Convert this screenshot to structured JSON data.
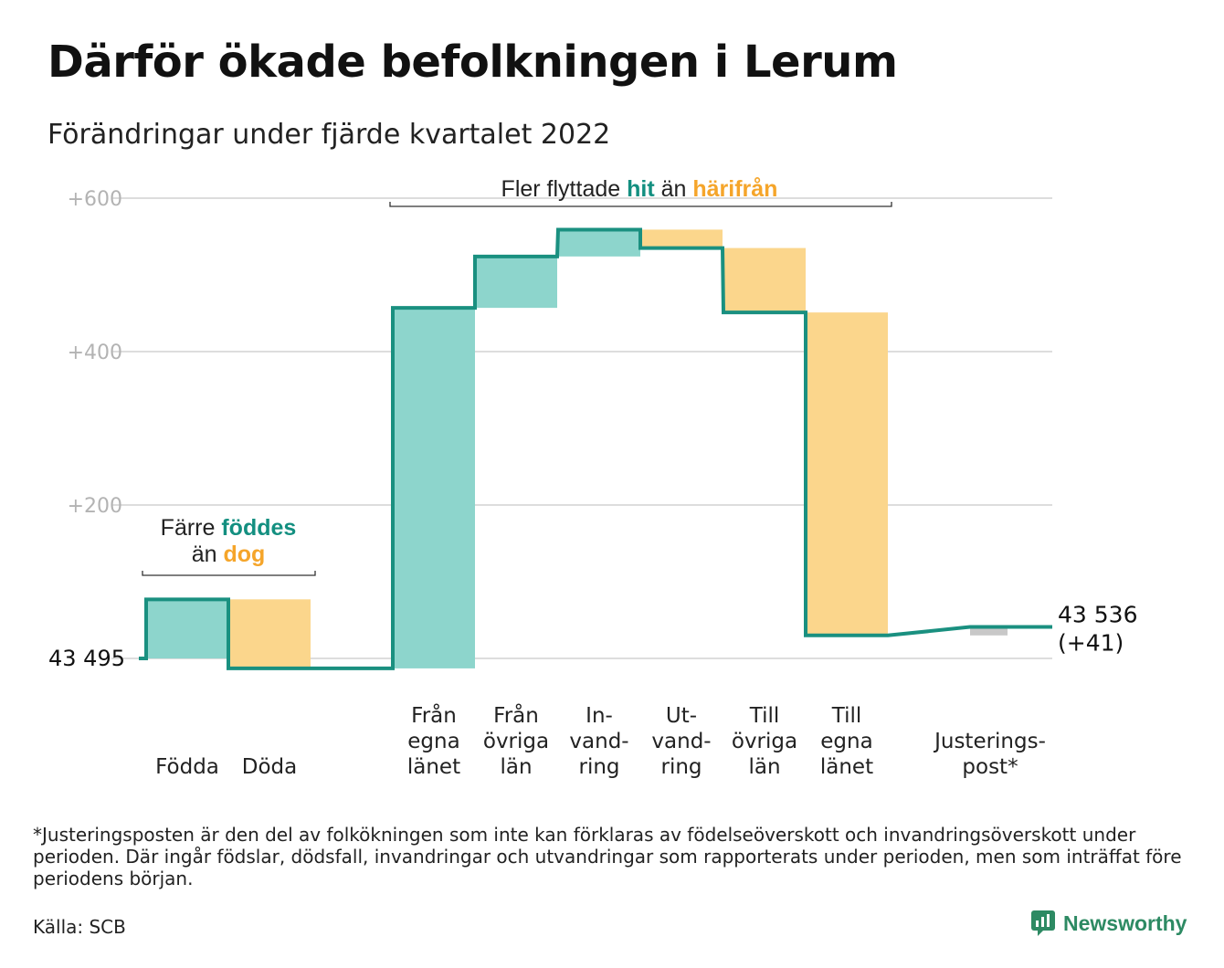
{
  "title": "Därför ökade befolkningen i Lerum",
  "subtitle": "Förändringar under fjärde kvartalet 2022",
  "colors": {
    "increase": "#8dd5cc",
    "decrease": "#fbd68c",
    "adjustment": "#c8c8c8",
    "line": "#1a9080",
    "accent_teal": "#138f80",
    "accent_orange": "#f5a52a",
    "grid": "#dddddd",
    "tick": "#b3b3b3",
    "brand": "#2d8a63"
  },
  "chart_data": {
    "type": "waterfall",
    "start_label": "43 495",
    "start_value": 43495,
    "end_label": "43 536",
    "end_change_label": "(+41)",
    "y_ticks": [
      {
        "value": 200,
        "label": "+200"
      },
      {
        "value": 400,
        "label": "+400"
      },
      {
        "value": 600,
        "label": "+600"
      }
    ],
    "ylim": [
      -20,
      620
    ],
    "categories": [
      {
        "label_lines": [
          "Födda"
        ],
        "change": 77,
        "kind": "increase"
      },
      {
        "label_lines": [
          "Döda"
        ],
        "change": -90,
        "kind": "decrease"
      },
      {
        "label_lines": [
          "Från",
          "egna",
          "länet"
        ],
        "change": 470,
        "kind": "increase"
      },
      {
        "label_lines": [
          "Från",
          "övriga",
          "län"
        ],
        "change": 67,
        "kind": "increase"
      },
      {
        "label_lines": [
          "In-",
          "vand-",
          "ring"
        ],
        "change": 35,
        "kind": "increase"
      },
      {
        "label_lines": [
          "Ut-",
          "vand-",
          "ring"
        ],
        "change": -24,
        "kind": "decrease"
      },
      {
        "label_lines": [
          "Till",
          "övriga",
          "län"
        ],
        "change": -84,
        "kind": "decrease"
      },
      {
        "label_lines": [
          "Till",
          "egna",
          "länet"
        ],
        "change": -421,
        "kind": "decrease"
      },
      {
        "label_lines": [
          "Justerings-",
          "post*"
        ],
        "change": 11,
        "kind": "adjustment"
      }
    ],
    "annotations": {
      "births_deaths": {
        "line1_parts": [
          {
            "text": "Färre ",
            "color": "plain"
          },
          {
            "text": "föddes",
            "color": "teal"
          }
        ],
        "line2_parts": [
          {
            "text": "än ",
            "color": "plain"
          },
          {
            "text": "dog",
            "color": "orange"
          }
        ]
      },
      "migration": {
        "parts": [
          {
            "text": "Fler flyttade ",
            "color": "plain"
          },
          {
            "text": "hit",
            "color": "teal"
          },
          {
            "text": " än ",
            "color": "plain"
          },
          {
            "text": "härifrån",
            "color": "orange"
          }
        ]
      }
    }
  },
  "footnote": "*Justeringsposten är den del av folkökningen som inte kan förklaras av födelseöverskott och invandringsöverskott under perioden. Där ingår födslar, dödsfall, invandringar och utvandringar som rapporterats under perioden, men som inträffat före periodens början.",
  "source": "Källa: SCB",
  "brand": {
    "name": "Newsworthy",
    "icon": "newsworthy-logo-icon"
  }
}
